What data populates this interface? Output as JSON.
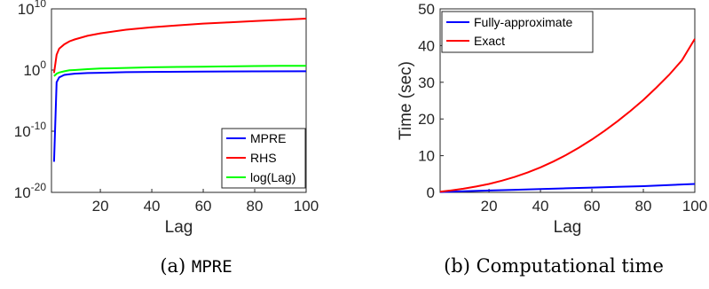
{
  "captions": [
    {
      "prefix": "(a) ",
      "mono": "MPRE"
    },
    {
      "prefix": "(b) Computational time",
      "mono": ""
    }
  ],
  "chart_data": [
    {
      "type": "line",
      "xlabel": "Lag",
      "ylabel": "",
      "yscale": "log",
      "xlim": [
        1,
        100
      ],
      "ylim_exp": [
        -20,
        10
      ],
      "xticks": [
        20,
        40,
        60,
        80,
        100
      ],
      "ytick_labels": [
        {
          "exp": 10,
          "base": "10",
          "sup": "10"
        },
        {
          "exp": 0,
          "base": "10",
          "sup": "0"
        },
        {
          "exp": -10,
          "base": "10",
          "sup": "-10"
        },
        {
          "exp": -20,
          "base": "10",
          "sup": "-20"
        }
      ],
      "legend_location": "lower-right",
      "grid": false,
      "series": [
        {
          "name": "MPRE",
          "color": "#0000ff",
          "x": [
            2,
            3,
            4,
            5,
            6,
            8,
            10,
            15,
            20,
            30,
            40,
            60,
            80,
            100
          ],
          "log10_y": [
            -15,
            -2,
            -1.2,
            -1.0,
            -0.8,
            -0.7,
            -0.6,
            -0.5,
            -0.45,
            -0.35,
            -0.3,
            -0.25,
            -0.22,
            -0.2
          ]
        },
        {
          "name": "RHS",
          "color": "#ff0000",
          "x": [
            2,
            3,
            4,
            6,
            8,
            10,
            15,
            20,
            30,
            40,
            50,
            60,
            70,
            80,
            90,
            100
          ],
          "log10_y": [
            -0.5,
            2.5,
            3.5,
            4.2,
            4.7,
            5.0,
            5.6,
            6.0,
            6.6,
            7.0,
            7.3,
            7.6,
            7.8,
            8.0,
            8.2,
            8.4
          ]
        },
        {
          "name": "log(Lag)",
          "color": "#00ff00",
          "x": [
            2,
            3,
            4,
            6,
            8,
            10,
            15,
            20,
            30,
            40,
            50,
            60,
            70,
            80,
            90,
            100
          ],
          "log10_y": [
            -1.0,
            -0.6,
            -0.4,
            -0.2,
            -0.05,
            0.0,
            0.15,
            0.25,
            0.35,
            0.45,
            0.5,
            0.55,
            0.6,
            0.65,
            0.68,
            0.7
          ]
        }
      ]
    },
    {
      "type": "line",
      "xlabel": "Lag",
      "ylabel": "Time (sec)",
      "xlim": [
        1,
        100
      ],
      "ylim": [
        0,
        50
      ],
      "xticks": [
        20,
        40,
        60,
        80,
        100
      ],
      "yticks": [
        0,
        10,
        20,
        30,
        40,
        50
      ],
      "legend_location": "top-left",
      "grid": false,
      "series": [
        {
          "name": "Fully-approximate",
          "color": "#0000ff",
          "x": [
            1,
            10,
            20,
            30,
            40,
            50,
            60,
            70,
            80,
            90,
            100
          ],
          "y": [
            0.1,
            0.3,
            0.5,
            0.7,
            0.9,
            1.1,
            1.3,
            1.5,
            1.7,
            2.0,
            2.3
          ]
        },
        {
          "name": "Exact",
          "color": "#ff0000",
          "x": [
            1,
            5,
            10,
            15,
            20,
            25,
            30,
            35,
            40,
            45,
            50,
            55,
            60,
            65,
            70,
            75,
            80,
            85,
            90,
            95,
            100
          ],
          "y": [
            0.2,
            0.5,
            1.0,
            1.6,
            2.3,
            3.2,
            4.2,
            5.4,
            6.8,
            8.4,
            10.2,
            12.2,
            14.4,
            16.8,
            19.4,
            22.2,
            25.2,
            28.5,
            32.0,
            36.0,
            41.8
          ]
        }
      ]
    }
  ]
}
